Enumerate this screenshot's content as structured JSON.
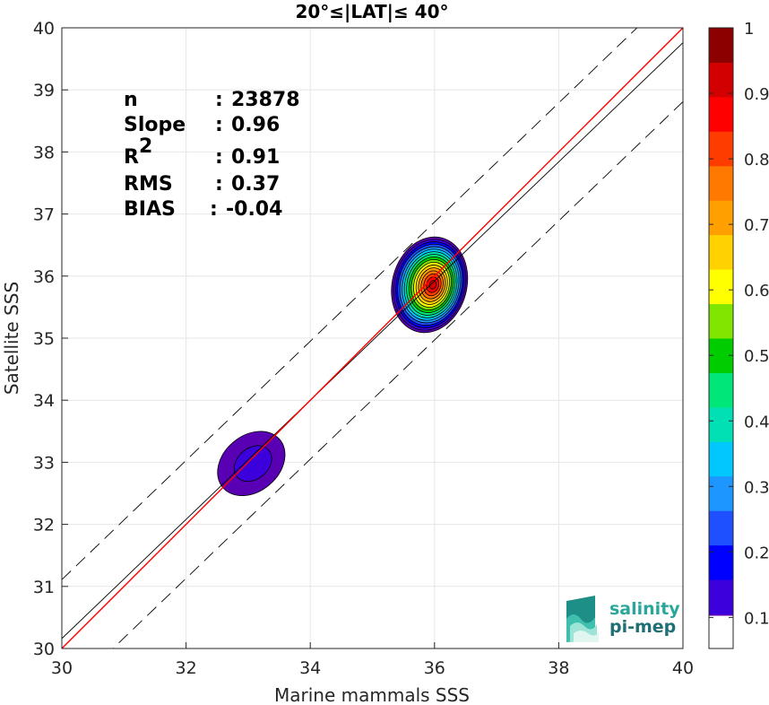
{
  "chart_data": {
    "type": "heatmap",
    "title": "20°≤|LAT|≤ 40°",
    "xlabel": "Marine mammals SSS",
    "ylabel": "Satellite SSS",
    "xlim": [
      30,
      40
    ],
    "ylim": [
      30,
      40
    ],
    "xticks": [
      30,
      32,
      34,
      36,
      38,
      40
    ],
    "yticks": [
      30,
      31,
      32,
      33,
      34,
      35,
      36,
      37,
      38,
      39,
      40
    ],
    "grid": true,
    "stats": [
      {
        "key": "n",
        "sep": ": ",
        "value": "23878"
      },
      {
        "key": "Slope",
        "sep": ": ",
        "value": "0.96"
      },
      {
        "key": "R",
        "sup": "2",
        "sep": ": ",
        "value": "0.91"
      },
      {
        "key": "RMS",
        "sep": ": ",
        "value": "0.37"
      },
      {
        "key": "BIAS",
        "sep": ": ",
        "value": "-0.04"
      }
    ],
    "lines": {
      "identity": {
        "color": "#ff0000",
        "points": [
          [
            30,
            30
          ],
          [
            40,
            40
          ]
        ]
      },
      "fit": {
        "color": "#000000",
        "points": [
          [
            30,
            30.16
          ],
          [
            40,
            39.76
          ]
        ]
      },
      "upper_bound": {
        "color": "#000000",
        "style": "dashed",
        "points": [
          [
            30,
            31.11
          ],
          [
            40,
            40.71
          ]
        ]
      },
      "lower_bound": {
        "color": "#000000",
        "style": "dashed",
        "points": [
          [
            30,
            29.21
          ],
          [
            40,
            38.81
          ]
        ]
      }
    },
    "density_clusters": [
      {
        "cx": 35.92,
        "cy": 35.86,
        "rx": 0.6,
        "ry": 0.78,
        "tilt_deg": 15,
        "peak": 0.97
      },
      {
        "cx": 33.05,
        "cy": 32.98,
        "rx": 0.45,
        "ry": 0.6,
        "tilt_deg": 50,
        "peak": 0.12
      }
    ],
    "colorbar": {
      "min": 0,
      "max": 1,
      "ticks": [
        "0.1",
        "0.2",
        "0.3",
        "0.4",
        "0.5",
        "0.6",
        "0.7",
        "0.8",
        "0.9",
        "1"
      ],
      "levels": [
        "#ffffff",
        "#5a00b4",
        "#3b00dc",
        "#0000ff",
        "#1e50ff",
        "#1e96ff",
        "#00c8ff",
        "#00e0b4",
        "#00e678",
        "#00cd00",
        "#80e600",
        "#ffff00",
        "#ffd200",
        "#ffa000",
        "#ff7800",
        "#ff3c00",
        "#ff0000",
        "#d20000",
        "#8c0000"
      ]
    }
  },
  "logo": {
    "line1": "salinity",
    "line2": "pi-mep"
  }
}
